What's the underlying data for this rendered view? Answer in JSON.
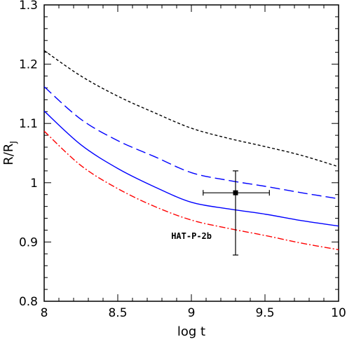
{
  "chart_data": {
    "type": "line",
    "xlabel": "log t",
    "ylabel": {
      "main": "R/R",
      "sub": "J"
    },
    "xlim": [
      8,
      10
    ],
    "ylim": [
      0.8,
      1.3
    ],
    "x_ticks": [
      8,
      8.5,
      9,
      9.5,
      10
    ],
    "x_tick_labels": [
      "8",
      "8.5",
      "9",
      "9.5",
      "10"
    ],
    "y_ticks": [
      0.8,
      0.9,
      1.0,
      1.1,
      1.2,
      1.3
    ],
    "y_tick_labels": [
      "0.8",
      "0.9",
      "1",
      "1.1",
      "1.2",
      "1.3"
    ],
    "grid": false,
    "series": [
      {
        "color": "#000000",
        "dash": "short-dash",
        "x": [
          8.0,
          8.25,
          8.5,
          8.75,
          9.0,
          9.25,
          9.5,
          9.75,
          10.0
        ],
        "y": [
          1.223,
          1.18,
          1.146,
          1.118,
          1.092,
          1.075,
          1.061,
          1.046,
          1.027
        ]
      },
      {
        "color": "#0000ff",
        "dash": "long-dash",
        "x": [
          8.0,
          8.25,
          8.5,
          8.75,
          9.0,
          9.25,
          9.5,
          9.75,
          10.0
        ],
        "y": [
          1.162,
          1.107,
          1.071,
          1.044,
          1.017,
          1.004,
          0.994,
          0.983,
          0.973
        ]
      },
      {
        "color": "#0000ff",
        "dash": "solid",
        "x": [
          8.0,
          8.25,
          8.5,
          8.75,
          9.0,
          9.25,
          9.5,
          9.75,
          10.0
        ],
        "y": [
          1.121,
          1.064,
          1.024,
          0.993,
          0.967,
          0.956,
          0.947,
          0.936,
          0.927
        ]
      },
      {
        "color": "#ff0000",
        "dash": "dash-dot",
        "x": [
          8.0,
          8.25,
          8.5,
          8.75,
          9.0,
          9.25,
          9.5,
          9.75,
          10.0
        ],
        "y": [
          1.087,
          1.029,
          0.99,
          0.96,
          0.937,
          0.923,
          0.911,
          0.898,
          0.887
        ]
      }
    ],
    "points": [
      {
        "label": "HAT-P-2b",
        "x": 9.3,
        "y": 0.983,
        "x_err": [
          0.22,
          0.23
        ],
        "y_err": [
          0.105,
          0.037
        ]
      }
    ]
  }
}
